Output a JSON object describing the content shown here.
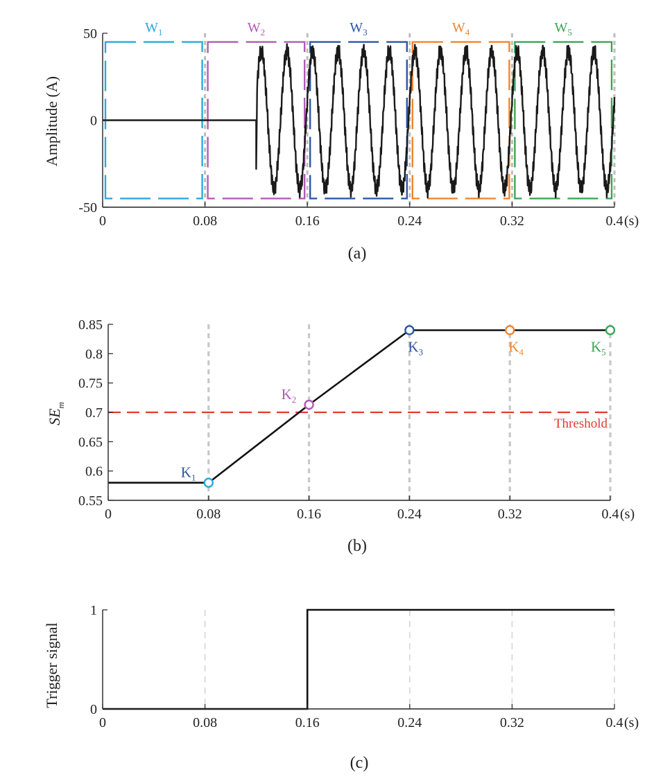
{
  "chart_data": [
    {
      "type": "line",
      "caption": "(a)",
      "ylabel": "Amplitude (A)",
      "x_unit": "(s)",
      "xlim": [
        0,
        0.4
      ],
      "ylim": [
        -50,
        50
      ],
      "x_ticks": [
        "0",
        "0.08",
        "0.16",
        "0.24",
        "0.32",
        "0.4"
      ],
      "y_ticks": [
        "-50",
        "0",
        "50"
      ],
      "grid": "dashed vertical lines at 0.08 s steps",
      "signal": {
        "pre_fault_value": 0,
        "fault_onset_s": 0.12,
        "initial_dip": -28,
        "peak_amplitude": 43,
        "frequency_hz": 50,
        "noise": "high-frequency ripple"
      },
      "windows": [
        {
          "label": "W",
          "sub": "1",
          "start": 0.0,
          "end": 0.08,
          "color": "#29a8de"
        },
        {
          "label": "W",
          "sub": "2",
          "start": 0.08,
          "end": 0.16,
          "color": "#b15bb5"
        },
        {
          "label": "W",
          "sub": "3",
          "start": 0.16,
          "end": 0.24,
          "color": "#2d56a5"
        },
        {
          "label": "W",
          "sub": "4",
          "start": 0.24,
          "end": 0.32,
          "color": "#f0852d"
        },
        {
          "label": "W",
          "sub": "5",
          "start": 0.32,
          "end": 0.4,
          "color": "#3aa655"
        }
      ]
    },
    {
      "type": "line",
      "caption": "(b)",
      "ylabel": "SE",
      "ylabel_sub": "m",
      "x_unit": "(s)",
      "xlim": [
        0,
        0.4
      ],
      "ylim": [
        0.55,
        0.85
      ],
      "x_ticks": [
        "0",
        "0.08",
        "0.16",
        "0.24",
        "0.32",
        "0.4"
      ],
      "y_ticks": [
        "0.55",
        "0.6",
        "0.65",
        "0.7",
        "0.75",
        "0.8",
        "0.85"
      ],
      "x": [
        0,
        0.08,
        0.16,
        0.24,
        0.32,
        0.4
      ],
      "y": [
        0.58,
        0.58,
        0.713,
        0.84,
        0.84,
        0.84
      ],
      "threshold": {
        "value": 0.7,
        "label": "Threshold",
        "color": "#e03a2f"
      },
      "markers": [
        {
          "label": "K",
          "sub": "1",
          "x": 0.08,
          "y": 0.58,
          "color": "#29a8de",
          "text_color": "#2d56a5",
          "label_pos": "upper-left"
        },
        {
          "label": "K",
          "sub": "2",
          "x": 0.16,
          "y": 0.713,
          "color": "#b15bb5",
          "text_color": "#b15bb5",
          "label_pos": "upper-left"
        },
        {
          "label": "K",
          "sub": "3",
          "x": 0.24,
          "y": 0.84,
          "color": "#2d56a5",
          "text_color": "#2d56a5",
          "label_pos": "below-right"
        },
        {
          "label": "K",
          "sub": "4",
          "x": 0.32,
          "y": 0.84,
          "color": "#f0852d",
          "text_color": "#f0852d",
          "label_pos": "below-right"
        },
        {
          "label": "K",
          "sub": "5",
          "x": 0.4,
          "y": 0.84,
          "color": "#3aa655",
          "text_color": "#3aa655",
          "label_pos": "below-left"
        }
      ]
    },
    {
      "type": "line",
      "caption": "(c)",
      "ylabel": "Trigger signal",
      "x_unit": "(s)",
      "xlim": [
        0,
        0.4
      ],
      "ylim": [
        0,
        1
      ],
      "x_ticks": [
        "0",
        "0.08",
        "0.16",
        "0.24",
        "0.32",
        "0.4"
      ],
      "y_ticks": [
        "0",
        "1"
      ],
      "x": [
        0,
        0.16,
        0.16,
        0.4
      ],
      "y": [
        0,
        0,
        1,
        1
      ]
    }
  ]
}
